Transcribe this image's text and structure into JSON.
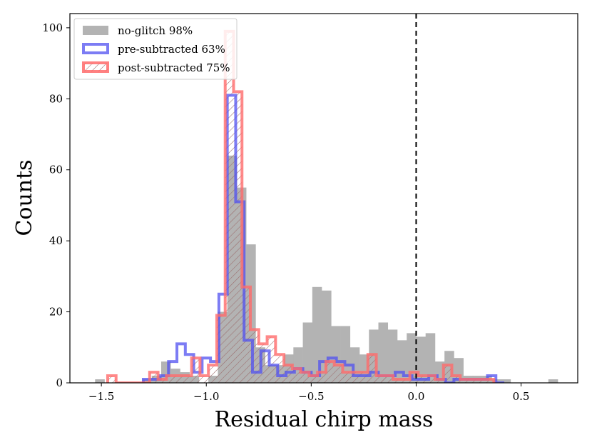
{
  "chart_data": {
    "type": "histogram",
    "xlabel": "Residual chirp mass",
    "ylabel": "Counts",
    "xlim": [
      -1.65,
      0.77
    ],
    "ylim": [
      0,
      104
    ],
    "x_ticks": [
      -1.5,
      -1.0,
      -0.5,
      0.0,
      0.5
    ],
    "x_tick_labels": [
      "−1.5",
      "−1.0",
      "−0.5",
      "0.0",
      "0.5"
    ],
    "y_ticks": [
      0,
      20,
      40,
      60,
      80,
      100
    ],
    "y_tick_labels": [
      "0",
      "20",
      "40",
      "60",
      "80",
      "100"
    ],
    "vline_x": 0.0,
    "legend_position": "top-left",
    "series": [
      {
        "name": "no-glitch 98%",
        "style": "filled",
        "color": "#b3b3b3",
        "edges": [
          -1.53,
          -1.485,
          -1.44,
          -1.395,
          -1.35,
          -1.305,
          -1.26,
          -1.215,
          -1.17,
          -1.125,
          -1.08,
          -1.035,
          -0.99,
          -0.945,
          -0.9,
          -0.855,
          -0.81,
          -0.765,
          -0.72,
          -0.675,
          -0.63,
          -0.585,
          -0.54,
          -0.495,
          -0.45,
          -0.405,
          -0.36,
          -0.315,
          -0.27,
          -0.225,
          -0.18,
          -0.135,
          -0.09,
          -0.045,
          0.0,
          0.045,
          0.09,
          0.135,
          0.18,
          0.225,
          0.27,
          0.315,
          0.36,
          0.405,
          0.45,
          0.495,
          0.54,
          0.585,
          0.63,
          0.675
        ],
        "counts": [
          1,
          0,
          0,
          0,
          0,
          1,
          2,
          6,
          4,
          3,
          2,
          0,
          2,
          20,
          64,
          55,
          39,
          10,
          5,
          5,
          8,
          10,
          17,
          27,
          26,
          16,
          16,
          10,
          8,
          15,
          17,
          15,
          12,
          14,
          13,
          14,
          6,
          9,
          7,
          2,
          2,
          2,
          1,
          1,
          0,
          0,
          0,
          0,
          1
        ]
      },
      {
        "name": "pre-subtracted 63%",
        "style": "step",
        "color": "#5050f0",
        "edges": [
          -1.3,
          -1.26,
          -1.22,
          -1.18,
          -1.14,
          -1.1,
          -1.06,
          -1.02,
          -0.98,
          -0.94,
          -0.9,
          -0.86,
          -0.82,
          -0.78,
          -0.74,
          -0.7,
          -0.66,
          -0.62,
          -0.58,
          -0.54,
          -0.5,
          -0.46,
          -0.42,
          -0.38,
          -0.34,
          -0.3,
          -0.26,
          -0.22,
          -0.18,
          -0.14,
          -0.1,
          -0.06,
          -0.02,
          0.02,
          0.06,
          0.1,
          0.14,
          0.18,
          0.22,
          0.26,
          0.3,
          0.34,
          0.38,
          0.42
        ],
        "counts": [
          1,
          1,
          2,
          6,
          11,
          8,
          3,
          7,
          6,
          25,
          81,
          51,
          12,
          3,
          9,
          5,
          2,
          3,
          4,
          3,
          2,
          6,
          7,
          6,
          5,
          2,
          2,
          3,
          2,
          2,
          3,
          2,
          1,
          1,
          2,
          1,
          0,
          1,
          1,
          1,
          1,
          2,
          0
        ]
      },
      {
        "name": "post-subtracted 75%",
        "style": "step-hatched",
        "color": "#ff6b6b",
        "edges": [
          -1.47,
          -1.43,
          -1.39,
          -1.35,
          -1.31,
          -1.27,
          -1.23,
          -1.19,
          -1.15,
          -1.11,
          -1.07,
          -1.03,
          -0.99,
          -0.95,
          -0.91,
          -0.87,
          -0.83,
          -0.79,
          -0.75,
          -0.71,
          -0.67,
          -0.63,
          -0.59,
          -0.55,
          -0.51,
          -0.47,
          -0.43,
          -0.39,
          -0.35,
          -0.31,
          -0.27,
          -0.23,
          -0.19,
          -0.15,
          -0.11,
          -0.07,
          -0.03,
          0.01,
          0.05,
          0.09,
          0.13,
          0.17,
          0.21,
          0.25,
          0.29,
          0.33,
          0.37
        ],
        "counts": [
          2,
          0,
          0,
          0,
          0,
          3,
          1,
          2,
          2,
          2,
          7,
          2,
          5,
          19,
          99,
          82,
          27,
          15,
          11,
          13,
          8,
          5,
          4,
          3,
          2,
          3,
          6,
          5,
          3,
          3,
          3,
          8,
          2,
          2,
          1,
          1,
          3,
          2,
          2,
          1,
          5,
          2,
          1,
          1,
          1,
          1
        ]
      }
    ]
  }
}
